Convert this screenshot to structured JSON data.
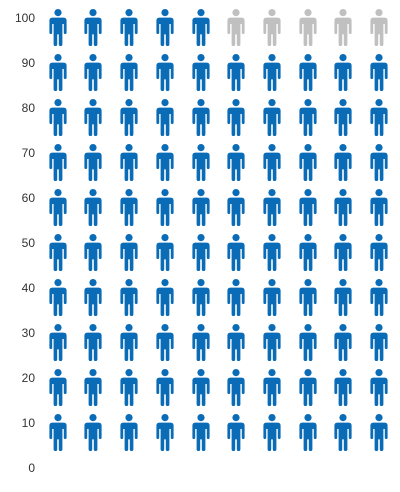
{
  "chart_data": {
    "type": "pictograph",
    "y_ticks": [
      "100",
      "90",
      "80",
      "70",
      "60",
      "50",
      "40",
      "30",
      "20",
      "10",
      "0"
    ],
    "ylim": [
      0,
      100
    ],
    "units_per_row": 10,
    "icons_per_row": 10,
    "total": 100,
    "value": 95,
    "icon": "person-icon",
    "colors": {
      "filled": "#0a6bb7",
      "empty": "#c0c0c0"
    }
  }
}
